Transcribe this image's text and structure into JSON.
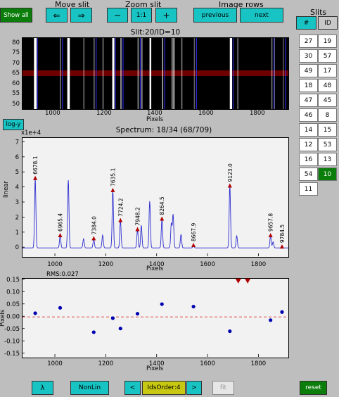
{
  "toolbar": {
    "show_all": "Show all",
    "move_slit_label": "Move slit",
    "move_left": "⇐",
    "move_right": "⇒",
    "zoom_slit_label": "Zoom slit",
    "zoom_out": "−",
    "zoom_reset": "1:1",
    "zoom_in": "+",
    "image_rows_label": "Image rows",
    "previous": "previous",
    "next": "next"
  },
  "slits": {
    "title": "Slits",
    "col_num": "#",
    "col_id": "ID",
    "rows": [
      [
        "27",
        "19"
      ],
      [
        "30",
        "57"
      ],
      [
        "49",
        "17"
      ],
      [
        "18",
        "48"
      ],
      [
        "47",
        "45"
      ],
      [
        "46",
        "8"
      ],
      [
        "14",
        "15"
      ],
      [
        "12",
        "53"
      ],
      [
        "16",
        "13"
      ],
      [
        "54",
        "10"
      ],
      [
        "11",
        ""
      ]
    ],
    "selected": "10"
  },
  "image": {
    "title": "Slit:20/ID=10",
    "xlabel": "Pixels",
    "y_ticks": [
      "80",
      "75",
      "70",
      "65",
      "60",
      "55",
      "50"
    ],
    "x_ticks": [
      "1000",
      "1200",
      "1400",
      "1600",
      "1800"
    ]
  },
  "logy_button": "log-y",
  "spectrum": {
    "title": "Spectrum: 18/34 (68/709)",
    "multiplier": "x1e+4",
    "ylabel": "linear",
    "xlabel": "Pixels"
  },
  "residuals": {
    "rms": "RMS:0.027",
    "ylabel": "Pixels",
    "xlabel": "Pixels"
  },
  "bottom": {
    "lambda": "λ",
    "nonlin": "NonLin",
    "prev": "<",
    "ids_order": "IdsOrder:4",
    "next": ">",
    "fit": "fit",
    "reset": "reset"
  },
  "chart_data": [
    {
      "type": "line",
      "title": "Spectrum: 18/34 (68/709)",
      "xlabel": "Pixels",
      "ylabel": "linear",
      "y_multiplier": "x1e+4",
      "xlim": [
        870,
        1915
      ],
      "ylim": [
        -0.6,
        7.3
      ],
      "x_ticks": [
        1000,
        1200,
        1400,
        1600,
        1800
      ],
      "y_ticks": [
        0,
        1,
        2,
        3,
        4,
        5,
        6,
        7
      ],
      "peaks": [
        {
          "x": 920,
          "y": 4.6
        },
        {
          "x": 1018,
          "y": 0.8
        },
        {
          "x": 1050,
          "y": 4.5
        },
        {
          "x": 1110,
          "y": 0.6
        },
        {
          "x": 1150,
          "y": 0.6
        },
        {
          "x": 1185,
          "y": 0.85
        },
        {
          "x": 1225,
          "y": 3.8
        },
        {
          "x": 1255,
          "y": 1.8
        },
        {
          "x": 1322,
          "y": 1.2
        },
        {
          "x": 1337,
          "y": 1.5
        },
        {
          "x": 1370,
          "y": 3.1
        },
        {
          "x": 1418,
          "y": 1.9
        },
        {
          "x": 1455,
          "y": 1.6
        },
        {
          "x": 1462,
          "y": 2.2
        },
        {
          "x": 1493,
          "y": 0.9
        },
        {
          "x": 1542,
          "y": 0.15
        },
        {
          "x": 1685,
          "y": 4.1
        },
        {
          "x": 1712,
          "y": 0.8
        },
        {
          "x": 1845,
          "y": 0.8
        },
        {
          "x": 1855,
          "y": 0.4
        },
        {
          "x": 1890,
          "y": 0.05
        }
      ],
      "line_ids": [
        {
          "x": 920,
          "y": 4.6,
          "label": "6678.1"
        },
        {
          "x": 1018,
          "y": 0.8,
          "label": "6965.4"
        },
        {
          "x": 1150,
          "y": 0.6,
          "label": "7384.0"
        },
        {
          "x": 1225,
          "y": 3.8,
          "label": "7635.1"
        },
        {
          "x": 1255,
          "y": 1.8,
          "label": "7724.2"
        },
        {
          "x": 1322,
          "y": 1.2,
          "label": "7948.2"
        },
        {
          "x": 1418,
          "y": 1.9,
          "label": "8264.5"
        },
        {
          "x": 1542,
          "y": 0.15,
          "label": "8667.9"
        },
        {
          "x": 1685,
          "y": 4.1,
          "label": "9123.0"
        },
        {
          "x": 1845,
          "y": 0.8,
          "label": "9657.8"
        },
        {
          "x": 1890,
          "y": 0.05,
          "label": "9784.5"
        }
      ]
    },
    {
      "type": "scatter",
      "title": "RMS:0.027",
      "xlabel": "Pixels",
      "ylabel": "Pixels",
      "xlim": [
        870,
        1915
      ],
      "ylim": [
        -0.165,
        0.155
      ],
      "x_ticks": [
        1000,
        1200,
        1400,
        1600,
        1800
      ],
      "y_ticks": [
        0.15,
        0.1,
        0.05,
        0.0,
        -0.05,
        -0.1,
        -0.15
      ],
      "points": [
        {
          "x": 920,
          "y": 0.015
        },
        {
          "x": 1018,
          "y": 0.037
        },
        {
          "x": 1150,
          "y": -0.062
        },
        {
          "x": 1225,
          "y": -0.005
        },
        {
          "x": 1255,
          "y": -0.047
        },
        {
          "x": 1322,
          "y": 0.013
        },
        {
          "x": 1418,
          "y": 0.052
        },
        {
          "x": 1542,
          "y": 0.042
        },
        {
          "x": 1685,
          "y": -0.058
        },
        {
          "x": 1845,
          "y": -0.013
        },
        {
          "x": 1890,
          "y": 0.02
        }
      ],
      "outliers": [
        {
          "x": 1718,
          "y": 0.15
        },
        {
          "x": 1755,
          "y": 0.15
        }
      ],
      "zero_line": 0
    }
  ]
}
